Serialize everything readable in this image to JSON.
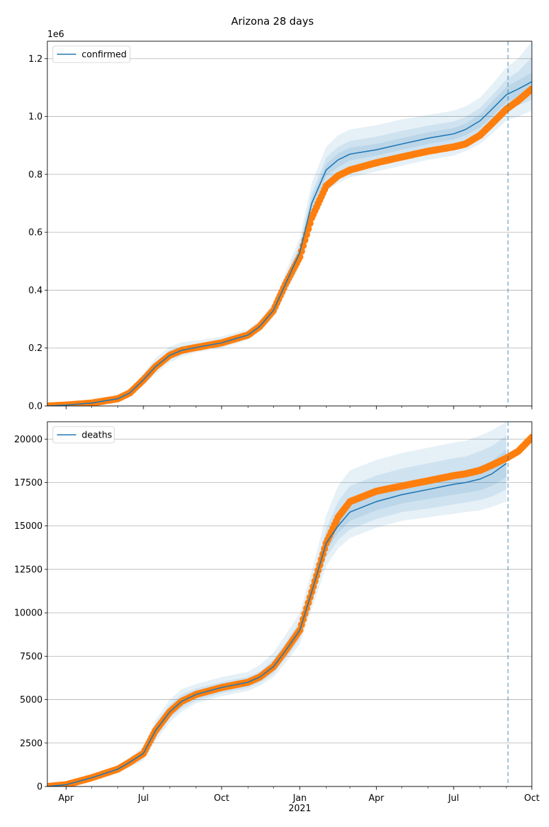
{
  "title": "Arizona 28 days",
  "colors": {
    "model": "#1f77b4",
    "observed": "#ff7f0e",
    "band": "#1f77b4",
    "grid": "#b0b0b0",
    "cutoff": "#1f77b4"
  },
  "chart_data": [
    {
      "type": "line",
      "legend": {
        "label": "confirmed",
        "placement": "top-left"
      },
      "y_offset_label": "1e6",
      "y_scale": 1000000,
      "ylim": [
        0,
        1260000
      ],
      "yticks": [
        0,
        200000,
        400000,
        600000,
        800000,
        1000000,
        1200000
      ],
      "ytick_labels": [
        "0.0",
        "0.2",
        "0.4",
        "0.6",
        "0.8",
        "1.0",
        "1.2"
      ],
      "grid": "horizontal",
      "xlim": [
        "2020-03-10",
        "2021-10-01"
      ],
      "xticks": [
        "2020-04-01",
        "2020-07-01",
        "2020-10-01",
        "2021-01-01",
        "2021-04-01",
        "2021-07-01",
        "2021-10-01"
      ],
      "xtick_labels": [],
      "forecast_start": "2021-09-03",
      "observed": {
        "x": [
          "2020-03-10",
          "2020-04-01",
          "2020-05-01",
          "2020-06-01",
          "2020-06-15",
          "2020-07-01",
          "2020-07-15",
          "2020-08-01",
          "2020-08-15",
          "2020-09-01",
          "2020-10-01",
          "2020-11-01",
          "2020-11-15",
          "2020-12-01",
          "2020-12-15",
          "2021-01-01",
          "2021-01-15",
          "2021-02-01",
          "2021-02-15",
          "2021-03-01",
          "2021-04-01",
          "2021-05-01",
          "2021-06-01",
          "2021-07-01",
          "2021-07-15",
          "2021-08-01",
          "2021-08-15",
          "2021-09-01",
          "2021-09-15",
          "2021-10-01"
        ],
        "y": [
          0,
          3000,
          10000,
          25000,
          45000,
          90000,
          135000,
          175000,
          192000,
          202000,
          218000,
          245000,
          275000,
          330000,
          420000,
          515000,
          650000,
          760000,
          795000,
          815000,
          840000,
          860000,
          880000,
          895000,
          905000,
          935000,
          975000,
          1025000,
          1055000,
          1095000
        ]
      },
      "model": {
        "x": [
          "2020-03-10",
          "2020-04-01",
          "2020-05-01",
          "2020-06-01",
          "2020-06-15",
          "2020-07-01",
          "2020-07-15",
          "2020-08-01",
          "2020-08-15",
          "2020-09-01",
          "2020-10-01",
          "2020-11-01",
          "2020-11-15",
          "2020-12-01",
          "2020-12-15",
          "2021-01-01",
          "2021-01-15",
          "2021-02-01",
          "2021-02-15",
          "2021-03-01",
          "2021-04-01",
          "2021-05-01",
          "2021-06-01",
          "2021-07-01",
          "2021-07-15",
          "2021-08-01",
          "2021-08-15",
          "2021-09-01",
          "2021-09-15",
          "2021-10-01"
        ],
        "y": [
          0,
          3000,
          10000,
          25000,
          45000,
          90000,
          135000,
          175000,
          192000,
          202000,
          218000,
          245000,
          275000,
          330000,
          420000,
          530000,
          700000,
          815000,
          850000,
          870000,
          885000,
          905000,
          925000,
          940000,
          955000,
          985000,
          1025000,
          1075000,
          1095000,
          1120000
        ],
        "bands": [
          {
            "lower": [
              0,
              2000,
              8000,
              20000,
              35000,
              70000,
              110000,
              150000,
              170000,
              185000,
              200000,
              228000,
              256000,
              305000,
              385000,
              485000,
              630000,
              740000,
              770000,
              790000,
              810000,
              830000,
              850000,
              865000,
              880000,
              905000,
              940000,
              985000,
              1000000,
              1020000
            ],
            "upper": [
              0,
              4000,
              13000,
              32000,
              56000,
              112000,
              165000,
              205000,
              220000,
              225000,
              240000,
              265000,
              298000,
              358000,
              460000,
              580000,
              770000,
              895000,
              935000,
              955000,
              970000,
              990000,
              1005000,
              1020000,
              1035000,
              1065000,
              1110000,
              1170000,
              1200000,
              1260000
            ]
          },
          {
            "lower": [
              0,
              2300,
              8800,
              22000,
              39000,
              78000,
              120000,
              160000,
              178000,
              192000,
              206000,
              234000,
              262000,
              314000,
              398000,
              500000,
              660000,
              770000,
              800000,
              822000,
              840000,
              860000,
              882000,
              897000,
              912000,
              938000,
              975000,
              1020000,
              1038000,
              1058000
            ],
            "upper": [
              0,
              3700,
              11800,
              29000,
              51000,
              102000,
              150000,
              192000,
              207000,
              214000,
              230000,
              256000,
              288000,
              346000,
              443000,
              558000,
              735000,
              858000,
              895000,
              915000,
              930000,
              950000,
              968000,
              983000,
              998000,
              1030000,
              1072000,
              1128000,
              1155000,
              1205000
            ]
          },
          {
            "lower": [
              0,
              2600,
              9400,
              23500,
              42000,
              84000,
              127000,
              167000,
              185000,
              197000,
              212000,
              239000,
              268000,
              322000,
              409000,
              515000,
              682000,
              795000,
              825000,
              848000,
              865000,
              885000,
              905000,
              920000,
              935000,
              962000,
              1000000,
              1048000,
              1068000,
              1088000
            ],
            "upper": [
              0,
              3400,
              10700,
              27000,
              48000,
              96000,
              143000,
              183000,
              199000,
              208000,
              224000,
              251000,
              282000,
              338000,
              431000,
              545000,
              718000,
              835000,
              872000,
              892000,
              905000,
              925000,
              945000,
              960000,
              975000,
              1008000,
              1050000,
              1102000,
              1125000,
              1152000
            ]
          }
        ]
      }
    },
    {
      "type": "line",
      "legend": {
        "label": "deaths",
        "placement": "top-left"
      },
      "y_offset_label": "",
      "y_scale": 1,
      "ylim": [
        0,
        21000
      ],
      "yticks": [
        0,
        2500,
        5000,
        7500,
        10000,
        12500,
        15000,
        17500,
        20000
      ],
      "ytick_labels": [
        "0",
        "2500",
        "5000",
        "7500",
        "10000",
        "12500",
        "15000",
        "17500",
        "20000"
      ],
      "grid": "horizontal",
      "xlim": [
        "2020-03-10",
        "2021-10-01"
      ],
      "xticks": [
        "2020-04-01",
        "2020-07-01",
        "2020-10-01",
        "2021-01-01",
        "2021-04-01",
        "2021-07-01",
        "2021-10-01"
      ],
      "xtick_labels": [
        "Apr",
        "Jul",
        "Oct",
        "Jan\n2021",
        "Apr",
        "Jul",
        "Oct"
      ],
      "forecast_start": "2021-09-03",
      "observed": {
        "x": [
          "2020-03-10",
          "2020-04-01",
          "2020-05-01",
          "2020-06-01",
          "2020-06-15",
          "2020-07-01",
          "2020-07-15",
          "2020-08-01",
          "2020-08-15",
          "2020-09-01",
          "2020-10-01",
          "2020-11-01",
          "2020-11-15",
          "2020-12-01",
          "2020-12-15",
          "2021-01-01",
          "2021-01-15",
          "2021-02-01",
          "2021-02-15",
          "2021-03-01",
          "2021-04-01",
          "2021-05-01",
          "2021-06-01",
          "2021-07-01",
          "2021-07-15",
          "2021-08-01",
          "2021-08-15",
          "2021-09-01",
          "2021-09-15",
          "2021-10-01"
        ],
        "y": [
          0,
          100,
          500,
          1000,
          1400,
          1900,
          3200,
          4300,
          4900,
          5300,
          5700,
          6000,
          6300,
          6900,
          7800,
          9000,
          11200,
          14000,
          15500,
          16400,
          17000,
          17300,
          17600,
          17900,
          18000,
          18200,
          18500,
          18900,
          19300,
          20100
        ]
      },
      "model": {
        "x": [
          "2020-03-10",
          "2020-04-01",
          "2020-05-01",
          "2020-06-01",
          "2020-06-15",
          "2020-07-01",
          "2020-07-15",
          "2020-08-01",
          "2020-08-15",
          "2020-09-01",
          "2020-10-01",
          "2020-11-01",
          "2020-11-15",
          "2020-12-01",
          "2020-12-15",
          "2021-01-01",
          "2021-01-15",
          "2021-02-01",
          "2021-02-15",
          "2021-03-01",
          "2021-04-01",
          "2021-05-01",
          "2021-06-01",
          "2021-07-01",
          "2021-07-15",
          "2021-08-01",
          "2021-08-15",
          "2021-09-01"
        ],
        "y": [
          0,
          100,
          500,
          1000,
          1400,
          1900,
          3200,
          4300,
          4900,
          5300,
          5700,
          6000,
          6300,
          6900,
          7800,
          9000,
          11200,
          14000,
          15000,
          15800,
          16400,
          16800,
          17100,
          17400,
          17500,
          17700,
          18000,
          18600
        ],
        "bands": [
          {
            "lower": [
              0,
              80,
              400,
              800,
              1100,
              1500,
              2600,
              3700,
              4300,
              4800,
              5200,
              5500,
              5800,
              6300,
              7100,
              8200,
              10200,
              12700,
              13700,
              14300,
              14900,
              15300,
              15500,
              15700,
              15800,
              15900,
              16100,
              16400
            ],
            "upper": [
              0,
              120,
              600,
              1200,
              1700,
              2300,
              3800,
              5000,
              5600,
              5900,
              6300,
              6600,
              7000,
              7700,
              8700,
              10000,
              12400,
              15600,
              17300,
              18200,
              18800,
              19200,
              19500,
              19800,
              19900,
              20200,
              20500,
              21000
            ]
          },
          {
            "lower": [
              0,
              87,
              440,
              870,
              1200,
              1630,
              2800,
              3900,
              4500,
              4950,
              5380,
              5680,
              5980,
              6500,
              7350,
              8500,
              10600,
              13200,
              14200,
              14800,
              15400,
              15800,
              16000,
              16250,
              16350,
              16500,
              16700,
              17100
            ],
            "upper": [
              0,
              113,
              560,
              1130,
              1600,
              2170,
              3600,
              4700,
              5300,
              5650,
              6020,
              6320,
              6620,
              7300,
              8250,
              9500,
              11800,
              14800,
              16400,
              17300,
              17900,
              18300,
              18600,
              18900,
              19000,
              19300,
              19600,
              20200
            ]
          },
          {
            "lower": [
              0,
              93,
              470,
              940,
              1300,
              1760,
              3000,
              4100,
              4700,
              5120,
              5540,
              5840,
              6140,
              6700,
              7570,
              8750,
              10900,
              13600,
              14600,
              15300,
              15900,
              16300,
              16550,
              16800,
              16900,
              17050,
              17300,
              17800
            ],
            "upper": [
              0,
              107,
              530,
              1060,
              1500,
              2040,
              3400,
              4500,
              5100,
              5480,
              5860,
              6160,
              6460,
              7100,
              8030,
              9250,
              11500,
              14400,
              15600,
              16500,
              17100,
              17500,
              17800,
              18100,
              18200,
              18450,
              18750,
              19400
            ]
          }
        ]
      }
    }
  ]
}
